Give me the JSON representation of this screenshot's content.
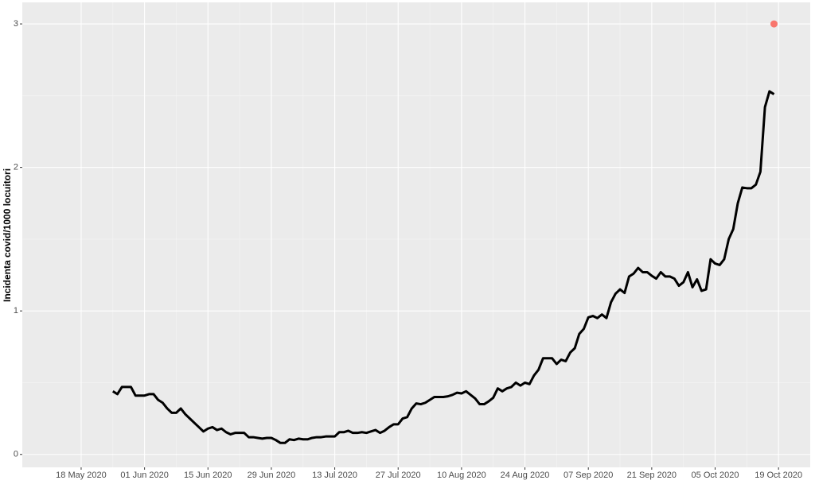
{
  "chart_data": {
    "type": "line",
    "y_label": "Incidenta covid/1000 locuitori",
    "x": [
      "2020-05-25",
      "2020-05-26",
      "2020-05-27",
      "2020-05-28",
      "2020-05-29",
      "2020-05-30",
      "2020-05-31",
      "2020-06-01",
      "2020-06-02",
      "2020-06-03",
      "2020-06-04",
      "2020-06-05",
      "2020-06-06",
      "2020-06-07",
      "2020-06-08",
      "2020-06-09",
      "2020-06-10",
      "2020-06-11",
      "2020-06-12",
      "2020-06-13",
      "2020-06-14",
      "2020-06-15",
      "2020-06-16",
      "2020-06-17",
      "2020-06-18",
      "2020-06-19",
      "2020-06-20",
      "2020-06-21",
      "2020-06-22",
      "2020-06-23",
      "2020-06-24",
      "2020-06-25",
      "2020-06-26",
      "2020-06-27",
      "2020-06-28",
      "2020-06-29",
      "2020-06-30",
      "2020-07-01",
      "2020-07-02",
      "2020-07-03",
      "2020-07-04",
      "2020-07-05",
      "2020-07-06",
      "2020-07-07",
      "2020-07-08",
      "2020-07-09",
      "2020-07-10",
      "2020-07-11",
      "2020-07-12",
      "2020-07-13",
      "2020-07-14",
      "2020-07-15",
      "2020-07-16",
      "2020-07-17",
      "2020-07-18",
      "2020-07-19",
      "2020-07-20",
      "2020-07-21",
      "2020-07-22",
      "2020-07-23",
      "2020-07-24",
      "2020-07-25",
      "2020-07-26",
      "2020-07-27",
      "2020-07-28",
      "2020-07-29",
      "2020-07-30",
      "2020-07-31",
      "2020-08-01",
      "2020-08-02",
      "2020-08-03",
      "2020-08-04",
      "2020-08-05",
      "2020-08-06",
      "2020-08-07",
      "2020-08-08",
      "2020-08-09",
      "2020-08-10",
      "2020-08-11",
      "2020-08-12",
      "2020-08-13",
      "2020-08-14",
      "2020-08-15",
      "2020-08-16",
      "2020-08-17",
      "2020-08-18",
      "2020-08-19",
      "2020-08-20",
      "2020-08-21",
      "2020-08-22",
      "2020-08-23",
      "2020-08-24",
      "2020-08-25",
      "2020-08-26",
      "2020-08-27",
      "2020-08-28",
      "2020-08-29",
      "2020-08-30",
      "2020-08-31",
      "2020-09-01",
      "2020-09-02",
      "2020-09-03",
      "2020-09-04",
      "2020-09-05",
      "2020-09-06",
      "2020-09-07",
      "2020-09-08",
      "2020-09-09",
      "2020-09-10",
      "2020-09-11",
      "2020-09-12",
      "2020-09-13",
      "2020-09-14",
      "2020-09-15",
      "2020-09-16",
      "2020-09-17",
      "2020-09-18",
      "2020-09-19",
      "2020-09-20",
      "2020-09-21",
      "2020-09-22",
      "2020-09-23",
      "2020-09-24",
      "2020-09-25",
      "2020-09-26",
      "2020-09-27",
      "2020-09-28",
      "2020-09-29",
      "2020-09-30",
      "2020-10-01",
      "2020-10-02",
      "2020-10-03",
      "2020-10-04",
      "2020-10-05",
      "2020-10-06",
      "2020-10-07",
      "2020-10-08",
      "2020-10-09",
      "2020-10-10",
      "2020-10-11",
      "2020-10-12",
      "2020-10-13",
      "2020-10-14",
      "2020-10-15",
      "2020-10-16",
      "2020-10-17",
      "2020-10-18"
    ],
    "series": [
      {
        "color": "#000000",
        "values": [
          0.44,
          0.42,
          0.47,
          0.47,
          0.47,
          0.41,
          0.41,
          0.41,
          0.42,
          0.42,
          0.38,
          0.36,
          0.32,
          0.29,
          0.29,
          0.32,
          0.28,
          0.25,
          0.22,
          0.19,
          0.16,
          0.18,
          0.19,
          0.17,
          0.18,
          0.155,
          0.14,
          0.15,
          0.15,
          0.15,
          0.12,
          0.12,
          0.115,
          0.11,
          0.115,
          0.115,
          0.1,
          0.08,
          0.08,
          0.105,
          0.1,
          0.11,
          0.105,
          0.105,
          0.115,
          0.12,
          0.12,
          0.125,
          0.125,
          0.125,
          0.155,
          0.155,
          0.165,
          0.15,
          0.15,
          0.155,
          0.15,
          0.16,
          0.17,
          0.15,
          0.165,
          0.19,
          0.21,
          0.21,
          0.25,
          0.26,
          0.32,
          0.355,
          0.35,
          0.36,
          0.38,
          0.4,
          0.4,
          0.4,
          0.405,
          0.415,
          0.43,
          0.425,
          0.44,
          0.415,
          0.39,
          0.35,
          0.35,
          0.37,
          0.395,
          0.46,
          0.44,
          0.46,
          0.47,
          0.5,
          0.48,
          0.5,
          0.49,
          0.55,
          0.59,
          0.67,
          0.67,
          0.67,
          0.63,
          0.66,
          0.65,
          0.71,
          0.74,
          0.84,
          0.875,
          0.955,
          0.965,
          0.95,
          0.975,
          0.95,
          1.06,
          1.12,
          1.15,
          1.125,
          1.24,
          1.26,
          1.3,
          1.27,
          1.27,
          1.245,
          1.225,
          1.27,
          1.24,
          1.24,
          1.225,
          1.175,
          1.2,
          1.27,
          1.165,
          1.22,
          1.14,
          1.15,
          1.36,
          1.33,
          1.32,
          1.36,
          1.5,
          1.57,
          1.75,
          1.86,
          1.855,
          1.855,
          1.88,
          1.97,
          2.42,
          2.53,
          2.51
        ]
      }
    ],
    "highlight": {
      "x": "2020-10-18",
      "value": 3,
      "color": "#f8766d"
    },
    "xlim": [
      "2020-05-05",
      "2020-10-26"
    ],
    "xticks": [
      {
        "value": "2020-05-18",
        "label": "18 May 2020"
      },
      {
        "value": "2020-06-01",
        "label": "01 Jun 2020"
      },
      {
        "value": "2020-06-15",
        "label": "15 Jun 2020"
      },
      {
        "value": "2020-06-29",
        "label": "29 Jun 2020"
      },
      {
        "value": "2020-07-13",
        "label": "13 Jul 2020"
      },
      {
        "value": "2020-07-27",
        "label": "27 Jul 2020"
      },
      {
        "value": "2020-08-10",
        "label": "10 Aug 2020"
      },
      {
        "value": "2020-08-24",
        "label": "24 Aug 2020"
      },
      {
        "value": "2020-09-07",
        "label": "07 Sep 2020"
      },
      {
        "value": "2020-09-21",
        "label": "21 Sep 2020"
      },
      {
        "value": "2020-10-05",
        "label": "05 Oct 2020"
      },
      {
        "value": "2020-10-19",
        "label": "19 Oct 2020"
      }
    ],
    "ylim": [
      -0.09,
      3.15
    ],
    "yticks": [
      0,
      1,
      2,
      3
    ],
    "grid": true
  }
}
